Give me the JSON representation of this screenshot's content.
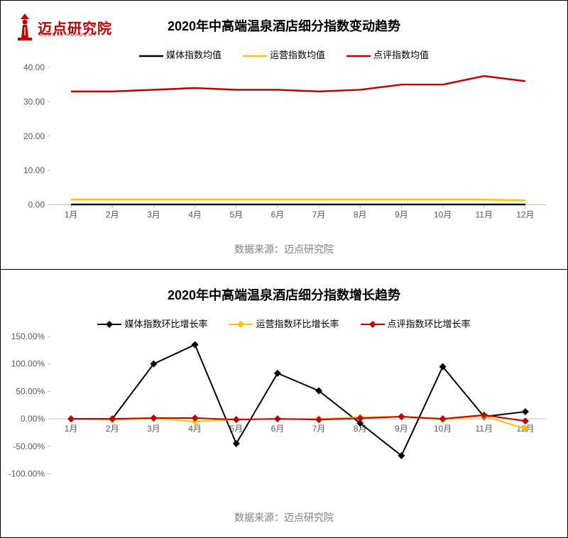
{
  "logo": {
    "text": "迈点研究院",
    "sub": "MEADIN ACADEMY"
  },
  "source_label": "数据来源：迈点研究院",
  "chart1": {
    "type": "line",
    "title": "2020年中高端温泉酒店细分指数变动趋势",
    "categories": [
      "1月",
      "2月",
      "3月",
      "4月",
      "5月",
      "6月",
      "7月",
      "8月",
      "9月",
      "10月",
      "11月",
      "12月"
    ],
    "ylim": [
      0.0,
      40.0
    ],
    "ytick_step": 10.0,
    "ytick_format": "fixed2",
    "background_color": "#ffffff",
    "axis_color": "#bfbfbf",
    "grid": false,
    "marker": false,
    "line_width": 2.5,
    "legend_fontsize": 13,
    "label_fontsize": 12,
    "title_fontsize": 18,
    "series": [
      {
        "name": "媒体指数均值",
        "color": "#000000",
        "values": [
          0.1,
          0.1,
          0.1,
          0.1,
          0.1,
          0.1,
          0.1,
          0.1,
          0.1,
          0.1,
          0.1,
          0.1
        ]
      },
      {
        "name": "运营指数均值",
        "color": "#ffc000",
        "values": [
          1.5,
          1.5,
          1.5,
          1.5,
          1.5,
          1.5,
          1.5,
          1.5,
          1.5,
          1.5,
          1.5,
          1.3
        ]
      },
      {
        "name": "点评指数均值",
        "color": "#c00000",
        "values": [
          33.0,
          33.0,
          33.5,
          34.0,
          33.5,
          33.5,
          33.0,
          33.5,
          35.0,
          35.0,
          37.5,
          36.0
        ]
      }
    ]
  },
  "chart2": {
    "type": "line",
    "title": "2020年中高端温泉酒店细分指数增长趋势",
    "categories": [
      "1月",
      "2月",
      "3月",
      "4月",
      "5月",
      "6月",
      "7月",
      "8月",
      "9月",
      "10月",
      "11月",
      "12月"
    ],
    "ylim": [
      -100.0,
      150.0
    ],
    "ytick_step": 50.0,
    "ytick_format": "pct2",
    "background_color": "#ffffff",
    "axis_color": "#bfbfbf",
    "grid": false,
    "marker": "diamond",
    "marker_size": 5,
    "line_width": 2,
    "legend_fontsize": 13,
    "label_fontsize": 12,
    "title_fontsize": 18,
    "series": [
      {
        "name": "媒体指数环比增长率",
        "color": "#000000",
        "values": [
          0.0,
          0.0,
          100.0,
          135.0,
          -45.0,
          83.0,
          51.0,
          -8.0,
          -67.0,
          95.0,
          4.0,
          13.0
        ]
      },
      {
        "name": "运营指数环比增长率",
        "color": "#ffc000",
        "values": [
          0.0,
          -2.0,
          1.0,
          -5.0,
          -1.0,
          0.0,
          0.0,
          3.0,
          4.0,
          -1.0,
          5.0,
          -18.0
        ]
      },
      {
        "name": "点评指数环比增长率",
        "color": "#c00000",
        "values": [
          0.0,
          0.0,
          1.5,
          1.5,
          -1.5,
          0.0,
          -1.5,
          1.0,
          4.0,
          0.0,
          7.0,
          -4.0
        ]
      }
    ]
  }
}
